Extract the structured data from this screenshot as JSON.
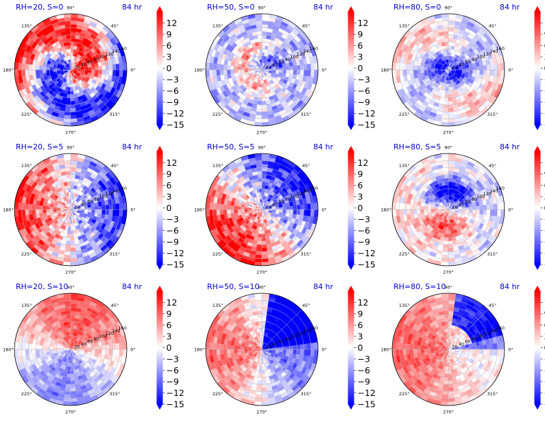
{
  "chart_data": {
    "type": "heatmap",
    "projection": "polar",
    "theta_ticks": [
      "0°",
      "45°",
      "90°",
      "135°",
      "180°",
      "225°",
      "270°",
      "315°"
    ],
    "r_ticks": [
      "20",
      "40",
      "60",
      "80",
      "100",
      "120",
      "140",
      "160"
    ],
    "rlim": [
      0,
      160
    ],
    "colorbar": {
      "ticks": [
        "12",
        "9",
        "6",
        "3",
        "0",
        "−3",
        "−6",
        "−9",
        "−12",
        "−15"
      ],
      "vmin": -15,
      "vmax": 15,
      "colors": [
        "#0000ff",
        "#ffffff",
        "#ff0000"
      ],
      "extend": "both"
    },
    "grid": true,
    "panels": [
      {
        "label": "RH=20, S=0",
        "time": "84 hr"
      },
      {
        "label": "RH=50, S=0",
        "time": "84 hr"
      },
      {
        "label": "RH=80, S=0",
        "time": "84 hr"
      },
      {
        "label": "RH=20, S=5",
        "time": "84 hr"
      },
      {
        "label": "RH=50, S=5",
        "time": "84 hr"
      },
      {
        "label": "RH=80, S=5",
        "time": "84 hr"
      },
      {
        "label": "RH=20, S=10",
        "time": "84 hr"
      },
      {
        "label": "RH=50, S=10",
        "time": "84 hr"
      },
      {
        "label": "RH=80, S=10",
        "time": "84 hr"
      }
    ]
  }
}
